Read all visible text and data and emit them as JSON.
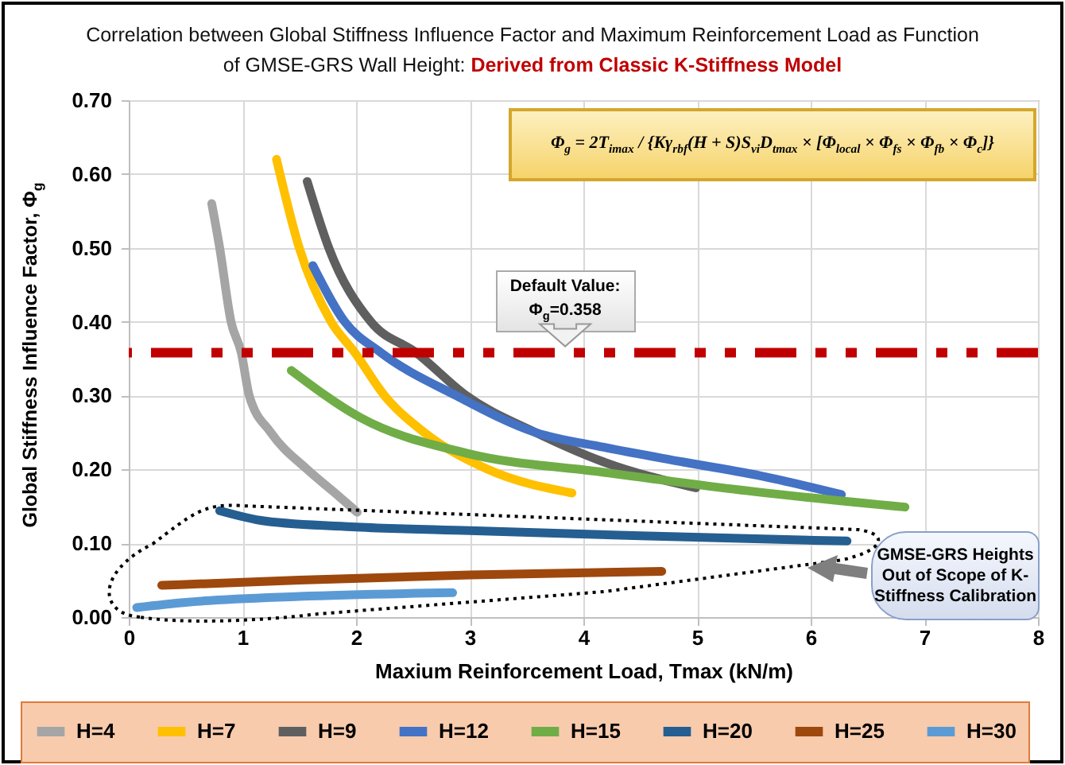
{
  "chart_data": {
    "type": "line",
    "title": "Correlation between Global Stiffness Influence Factor and Maximum Reinforcement Load as Function of GMSE-GRS Wall Height:",
    "subtitle": "Derived from Classic K-Stiffness Model",
    "xlabel": "Maxium Reinforcement Load, Tmax (kN/m)",
    "ylabel": "Global Stiffness Influence Factor, Φ$_{g}$",
    "xlim": [
      0,
      8
    ],
    "xticks": [
      0,
      1,
      2,
      3,
      4,
      5,
      6,
      7,
      8
    ],
    "ylim": [
      0,
      0.7
    ],
    "yticks": [
      {
        "value": 0,
        "label": "0.00"
      },
      {
        "value": 0.1,
        "label": "0.10"
      },
      {
        "value": 0.2,
        "label": "0.20"
      },
      {
        "value": 0.3,
        "label": "0.30"
      },
      {
        "value": 0.4,
        "label": "0.40"
      },
      {
        "value": 0.5,
        "label": "0.50"
      },
      {
        "value": 0.6,
        "label": "0.60"
      },
      {
        "value": 0.7,
        "label": "0.70"
      }
    ],
    "grid": true,
    "legend": "bottom",
    "line_style": "solid",
    "series": [
      {
        "name": "H=4",
        "color": "#a5a5a5",
        "x": [
          0.73,
          0.8,
          0.9,
          0.99,
          1.06,
          1.25,
          1.57,
          1.8,
          2.01
        ],
        "values": [
          0.56,
          0.5,
          0.4,
          0.358,
          0.3,
          0.25,
          0.2,
          0.17,
          0.142
        ]
      },
      {
        "name": "H=7",
        "color": "#ffc000",
        "x": [
          1.3,
          1.5,
          1.78,
          1.99,
          2.25,
          2.6,
          3.16,
          3.9
        ],
        "values": [
          0.62,
          0.5,
          0.4,
          0.358,
          0.3,
          0.25,
          0.2,
          0.168
        ]
      },
      {
        "name": "H=9",
        "color": "#5f5f5f",
        "x": [
          1.57,
          1.76,
          2.13,
          2.53,
          2.97,
          3.58,
          4.18,
          4.99
        ],
        "values": [
          0.59,
          0.5,
          0.4,
          0.358,
          0.3,
          0.25,
          0.21,
          0.175
        ]
      },
      {
        "name": "H=12",
        "color": "#4472c4",
        "x": [
          1.62,
          1.9,
          2.22,
          2.88,
          3.58,
          4.18,
          4.88,
          5.6,
          6.27
        ],
        "values": [
          0.476,
          0.4,
          0.358,
          0.3,
          0.25,
          0.23,
          0.21,
          0.19,
          0.166
        ]
      },
      {
        "name": "H=15",
        "color": "#70ad47",
        "x": [
          1.43,
          2.04,
          2.97,
          4.18,
          5.5,
          6.83
        ],
        "values": [
          0.334,
          0.27,
          0.222,
          0.196,
          0.17,
          0.149
        ]
      },
      {
        "name": "H=20",
        "color": "#255e91",
        "x": [
          0.8,
          1.2,
          2,
          3,
          4.5,
          6.32
        ],
        "values": [
          0.144,
          0.13,
          0.122,
          0.117,
          0.11,
          0.103
        ]
      },
      {
        "name": "H=25",
        "color": "#9e480e",
        "x": [
          0.29,
          1.5,
          3,
          4.69
        ],
        "values": [
          0.043,
          0.05,
          0.057,
          0.062
        ]
      },
      {
        "name": "H=30",
        "color": "#5b9bd5",
        "x": [
          0.07,
          0.5,
          1.5,
          2.85
        ],
        "values": [
          0.013,
          0.02,
          0.028,
          0.033
        ]
      }
    ],
    "ref_lines": [
      {
        "axis": "y",
        "value": 0.358,
        "label": "Default Value: Φ$_{g}$=0.358",
        "color": "#c00000",
        "line_style": "dashed"
      }
    ],
    "annotations": [
      "Φ$_{g}$ = 2T$_{imax}$ / {Kγ$_{rbf}$(H + S)S$_{vi}$D$_{tmax}$ × [Φ$_{local}$ × Φ$_{fs}$ × Φ$_{fb}$ × Φ$_{c}$]}",
      "GMSE-GRS Heights Out of Scope of K-Stiffness Calibration"
    ]
  }
}
